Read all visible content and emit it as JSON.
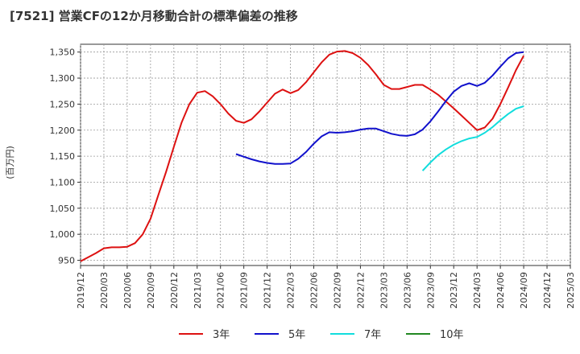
{
  "title": "[7521]  営業CFの12か月移動合計の標準偏差の推移",
  "chart_data": {
    "type": "line",
    "ylabel": "(百万円)",
    "xlabel": "",
    "ylim": [
      940,
      1365
    ],
    "yticks": [
      950,
      1000,
      1050,
      1100,
      1150,
      1200,
      1250,
      1300,
      1350
    ],
    "ytick_labels": [
      "950",
      "1,000",
      "1,050",
      "1,100",
      "1,150",
      "1,200",
      "1,250",
      "1,300",
      "1,350"
    ],
    "xlim": [
      "2019-12",
      "2025-03"
    ],
    "xticks": [
      "2019/12",
      "2020/03",
      "2020/06",
      "2020/09",
      "2020/12",
      "2021/03",
      "2021/06",
      "2021/09",
      "2021/12",
      "2022/03",
      "2022/06",
      "2022/09",
      "2022/12",
      "2023/03",
      "2023/06",
      "2023/09",
      "2023/12",
      "2024/03",
      "2024/06",
      "2024/09",
      "2024/12",
      "2025/03"
    ],
    "grid": true,
    "legend_position": "bottom",
    "series": [
      {
        "name": "3年",
        "color": "#dd1111",
        "x": [
          "2019-12",
          "2020-01",
          "2020-02",
          "2020-03",
          "2020-04",
          "2020-05",
          "2020-06",
          "2020-07",
          "2020-08",
          "2020-09",
          "2020-10",
          "2020-11",
          "2020-12",
          "2021-01",
          "2021-02",
          "2021-03",
          "2021-04",
          "2021-05",
          "2021-06",
          "2021-07",
          "2021-08",
          "2021-09",
          "2021-10",
          "2021-11",
          "2021-12",
          "2022-01",
          "2022-02",
          "2022-03",
          "2022-04",
          "2022-05",
          "2022-06",
          "2022-07",
          "2022-08",
          "2022-09",
          "2022-10",
          "2022-11",
          "2022-12",
          "2023-01",
          "2023-02",
          "2023-03",
          "2023-04",
          "2023-05",
          "2023-06",
          "2023-07",
          "2023-08",
          "2023-09",
          "2023-10",
          "2023-11",
          "2023-12",
          "2024-01",
          "2024-02",
          "2024-03",
          "2024-04",
          "2024-05",
          "2024-06",
          "2024-07",
          "2024-08",
          "2024-09"
        ],
        "values": [
          948,
          956,
          964,
          973,
          975,
          975,
          976,
          983,
          1000,
          1030,
          1075,
          1120,
          1168,
          1215,
          1250,
          1272,
          1275,
          1265,
          1250,
          1232,
          1218,
          1214,
          1221,
          1236,
          1253,
          1270,
          1278,
          1271,
          1277,
          1292,
          1311,
          1330,
          1345,
          1351,
          1352,
          1348,
          1339,
          1325,
          1307,
          1287,
          1279,
          1279,
          1283,
          1287,
          1287,
          1278,
          1268,
          1255,
          1242,
          1228,
          1214,
          1200,
          1205,
          1222,
          1250,
          1282,
          1315,
          1343
        ]
      },
      {
        "name": "5年",
        "color": "#1111cc",
        "x": [
          "2021-08",
          "2021-09",
          "2021-10",
          "2021-11",
          "2021-12",
          "2022-01",
          "2022-02",
          "2022-03",
          "2022-04",
          "2022-05",
          "2022-06",
          "2022-07",
          "2022-08",
          "2022-09",
          "2022-10",
          "2022-11",
          "2022-12",
          "2023-01",
          "2023-02",
          "2023-03",
          "2023-04",
          "2023-05",
          "2023-06",
          "2023-07",
          "2023-08",
          "2023-09",
          "2023-10",
          "2023-11",
          "2023-12",
          "2024-01",
          "2024-02",
          "2024-03",
          "2024-04",
          "2024-05",
          "2024-06",
          "2024-07",
          "2024-08",
          "2024-09"
        ],
        "values": [
          1154,
          1149,
          1144,
          1140,
          1137,
          1135,
          1135,
          1136,
          1145,
          1158,
          1174,
          1188,
          1196,
          1195,
          1196,
          1198,
          1201,
          1203,
          1203,
          1198,
          1193,
          1190,
          1189,
          1192,
          1201,
          1217,
          1236,
          1256,
          1274,
          1285,
          1290,
          1285,
          1291,
          1305,
          1322,
          1338,
          1348,
          1350
        ]
      },
      {
        "name": "7年",
        "color": "#11dddd",
        "x": [
          "2023-08",
          "2023-09",
          "2023-10",
          "2023-11",
          "2023-12",
          "2024-01",
          "2024-02",
          "2024-03",
          "2024-04",
          "2024-05",
          "2024-06",
          "2024-07",
          "2024-08",
          "2024-09"
        ],
        "values": [
          1122,
          1138,
          1152,
          1163,
          1172,
          1179,
          1184,
          1187,
          1195,
          1206,
          1219,
          1231,
          1241,
          1246
        ]
      },
      {
        "name": "10年",
        "color": "#228822",
        "x": [],
        "values": []
      }
    ]
  }
}
